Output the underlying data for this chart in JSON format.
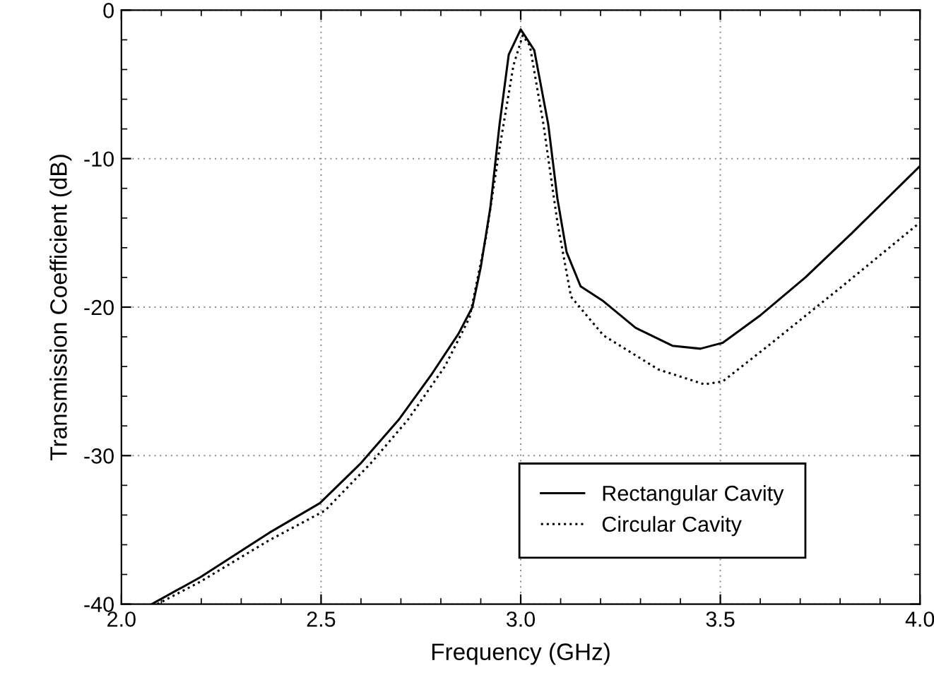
{
  "chart_data": {
    "type": "line",
    "xlabel": "Frequency (GHz)",
    "ylabel": "Transmission Coefficient (dB)",
    "xlim": [
      2.0,
      4.0
    ],
    "xticks": [
      {
        "value": 2.0,
        "label": "2.0"
      },
      2.5,
      {
        "value": 3.0,
        "label": "3.0"
      },
      3.5,
      {
        "value": 4.0,
        "label": "4.0"
      }
    ],
    "ylim": [
      -40,
      0
    ],
    "yticks": [
      -40,
      -30,
      -20,
      -10,
      0
    ],
    "grid": true,
    "legend": "bottom right",
    "marker": "none",
    "series": [
      {
        "name": "Rectangular Cavity",
        "color": "#000000",
        "line_style": "solid",
        "x": [
          2.076,
          2.197,
          2.37,
          2.497,
          2.6,
          2.694,
          2.775,
          2.844,
          2.879,
          2.9,
          2.924,
          2.947,
          2.97,
          3.0,
          3.034,
          3.069,
          3.092,
          3.115,
          3.15,
          3.207,
          3.288,
          3.38,
          3.45,
          3.506,
          3.598,
          3.713,
          3.83,
          4.0
        ],
        "values": [
          -40,
          -38.2,
          -35.2,
          -33.2,
          -30.5,
          -27.6,
          -24.6,
          -21.8,
          -20.0,
          -17.3,
          -13.3,
          -7.7,
          -3.0,
          -1.3,
          -2.7,
          -7.7,
          -12.7,
          -16.3,
          -18.6,
          -19.6,
          -21.4,
          -22.6,
          -22.8,
          -22.4,
          -20.6,
          -18.0,
          -15.0,
          -10.5
        ]
      },
      {
        "name": "Circular Cavity",
        "color": "#000000",
        "line_style": "dotted",
        "x": [
          2.09,
          2.197,
          2.37,
          2.51,
          2.625,
          2.717,
          2.81,
          2.872,
          2.913,
          2.947,
          2.982,
          3.005,
          3.023,
          3.057,
          3.092,
          3.126,
          3.207,
          3.345,
          3.46,
          3.506,
          3.62,
          3.805,
          4.0
        ],
        "values": [
          -40,
          -38.5,
          -35.7,
          -33.7,
          -30.5,
          -27.6,
          -24.0,
          -20.7,
          -15.3,
          -9.3,
          -3.7,
          -1.7,
          -2.4,
          -7.7,
          -14.3,
          -19.3,
          -21.9,
          -24.2,
          -25.2,
          -25.0,
          -22.6,
          -18.6,
          -14.3
        ]
      }
    ]
  }
}
